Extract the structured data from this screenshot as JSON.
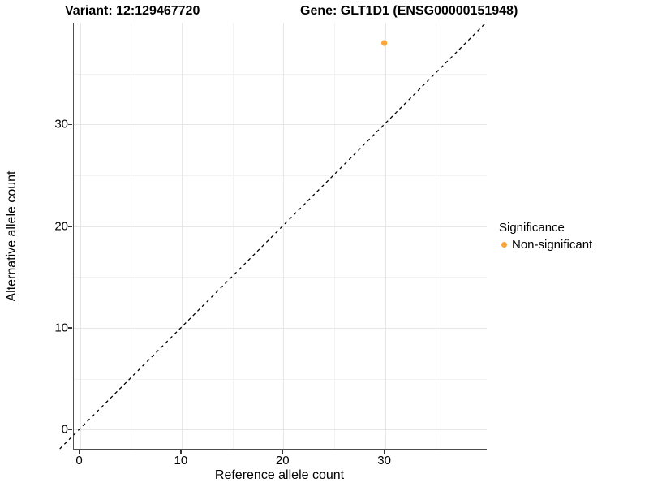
{
  "chart_data": {
    "type": "scatter",
    "title_left": "Variant: 12:129467720",
    "title_right": "Gene: GLT1D1 (ENSG00000151948)",
    "xlabel": "Reference allele count",
    "ylabel": "Alternative allele count",
    "xlim": [
      -0.6,
      40.0
    ],
    "ylim": [
      -1.9,
      40.0
    ],
    "x_major_ticks": [
      0,
      10,
      20,
      30
    ],
    "y_major_ticks": [
      0,
      10,
      20,
      30
    ],
    "x_minor_ticks": [
      5,
      15,
      25,
      35
    ],
    "y_minor_ticks": [
      5,
      15,
      25,
      35
    ],
    "grid": "on",
    "series": [
      {
        "name": "Non-significant",
        "points": [
          {
            "x": 30,
            "y": 38
          }
        ],
        "color": "#FAA43A"
      }
    ],
    "identity_line": {
      "type": "abline",
      "slope": 1,
      "intercept": 0,
      "style": "dashed",
      "color": "#000000",
      "span": [
        -1.9,
        40.0
      ]
    },
    "legend": {
      "title": "Significance",
      "position": "right",
      "items": [
        {
          "label": "Non-significant",
          "color": "#FAA43A"
        }
      ]
    },
    "colors": {
      "point": "#FAA43A",
      "grid_major": "#e7e7e7",
      "grid_minor": "#f3f3f3",
      "axis_line": "#4d4d4d",
      "tick": "#333333",
      "text": "#000000"
    }
  }
}
